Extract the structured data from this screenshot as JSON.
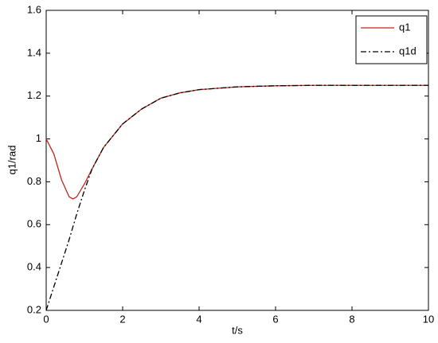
{
  "chart_data": {
    "type": "line",
    "x_label": "t/s",
    "y_label": "q1/rad",
    "x": [
      0,
      0.2,
      0.4,
      0.6,
      0.7,
      0.8,
      1.0,
      1.2,
      1.5,
      2,
      2.5,
      3,
      3.5,
      4,
      5,
      6,
      7,
      8,
      9,
      10
    ],
    "series": [
      {
        "name": "q1",
        "color": "#c0281c",
        "dash": "none",
        "values": [
          1.0,
          0.93,
          0.81,
          0.73,
          0.72,
          0.73,
          0.79,
          0.86,
          0.96,
          1.07,
          1.14,
          1.19,
          1.215,
          1.23,
          1.243,
          1.248,
          1.25,
          1.25,
          1.25,
          1.25
        ]
      },
      {
        "name": "q1d",
        "color": "#000000",
        "dash": "7,3,2,3",
        "values": [
          0.2,
          0.31,
          0.42,
          0.53,
          0.59,
          0.65,
          0.76,
          0.86,
          0.96,
          1.07,
          1.14,
          1.19,
          1.215,
          1.23,
          1.243,
          1.248,
          1.25,
          1.25,
          1.25,
          1.25
        ]
      }
    ],
    "xlim": [
      0,
      10
    ],
    "xticks": [
      0,
      2,
      4,
      6,
      8,
      10
    ],
    "ylim": [
      0.2,
      1.6
    ],
    "yticks": [
      0.2,
      0.4,
      0.6,
      0.8,
      1,
      1.2,
      1.4,
      1.6
    ],
    "legend": "upper-right",
    "grid": false
  }
}
